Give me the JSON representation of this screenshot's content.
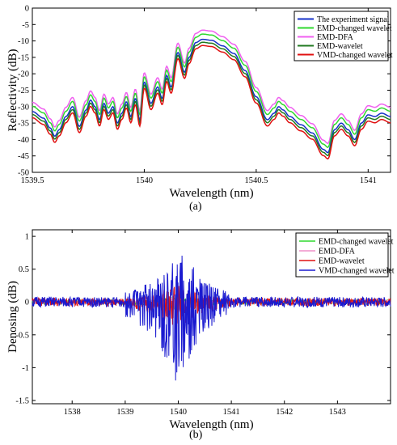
{
  "chart_data": [
    {
      "type": "line",
      "panel_caption": "(a)",
      "xlabel": "Wavelength (nm)",
      "ylabel": "Reflectivity (dB)",
      "xlim": [
        1539.5,
        1541.1
      ],
      "ylim": [
        -50,
        0
      ],
      "xticks": [
        1539.5,
        1540,
        1540.5,
        1541
      ],
      "xtick_labels": [
        "1539.5",
        "1540",
        "1540.5",
        "1541"
      ],
      "yticks": [
        0,
        -5,
        -10,
        -15,
        -20,
        -25,
        -30,
        -35,
        -40,
        -45,
        -50
      ],
      "ytick_labels": [
        "0",
        "-5",
        "-10",
        "-15",
        "-20",
        "-25",
        "-30",
        "-35",
        "-40",
        "-45",
        "-50"
      ],
      "legend_position": "top-right",
      "grid": false,
      "base_curve": {
        "x": [
          1539.5,
          1539.55,
          1539.58,
          1539.6,
          1539.62,
          1539.65,
          1539.68,
          1539.71,
          1539.74,
          1539.76,
          1539.78,
          1539.8,
          1539.82,
          1539.84,
          1539.86,
          1539.88,
          1539.9,
          1539.92,
          1539.94,
          1539.96,
          1539.98,
          1540.0,
          1540.03,
          1540.06,
          1540.08,
          1540.1,
          1540.12,
          1540.15,
          1540.18,
          1540.2,
          1540.23,
          1540.26,
          1540.3,
          1540.35,
          1540.4,
          1540.45,
          1540.5,
          1540.55,
          1540.58,
          1540.6,
          1540.62,
          1540.65,
          1540.7,
          1540.75,
          1540.8,
          1540.82,
          1540.85,
          1540.88,
          1540.91,
          1540.94,
          1540.97,
          1541.0,
          1541.03,
          1541.06,
          1541.1
        ],
        "y": [
          -31.5,
          -33.5,
          -36.5,
          -39,
          -37,
          -33,
          -30,
          -36,
          -31,
          -28,
          -30,
          -34,
          -29,
          -32,
          -30,
          -35,
          -32,
          -28.5,
          -33,
          -27.5,
          -34,
          -22.5,
          -29,
          -24,
          -27.5,
          -20.5,
          -24,
          -13.5,
          -19.5,
          -15,
          -10.5,
          -9.5,
          -9.8,
          -11.5,
          -13.8,
          -19,
          -27,
          -34,
          -32,
          -30,
          -31,
          -33,
          -35.5,
          -38,
          -43,
          -44,
          -37,
          -35,
          -37,
          -40,
          -35,
          -32.5,
          -33,
          -32,
          -33
        ]
      },
      "series": [
        {
          "name": "The experiment signal",
          "color": "#1530c8",
          "offset": 0
        },
        {
          "name": "EMD-changed wavelet",
          "color": "#2fd82f",
          "offset": 1.6
        },
        {
          "name": "EMD-DFA",
          "color": "#f060f0",
          "offset": 2.8
        },
        {
          "name": "EMD-wavelet",
          "color": "#207a20",
          "offset": -0.9
        },
        {
          "name": "VMD-changed wavelet",
          "color": "#e01010",
          "offset": -1.9
        }
      ]
    },
    {
      "type": "line",
      "panel_caption": "(b)",
      "xlabel": "Wavelength (nm)",
      "ylabel": "Denosing (dB)",
      "xlim": [
        1537.25,
        1544.0
      ],
      "ylim": [
        -1.55,
        1.1
      ],
      "xticks": [
        1538,
        1539,
        1540,
        1541,
        1542,
        1543
      ],
      "xtick_labels": [
        "1538",
        "1539",
        "1540",
        "1541",
        "1542",
        "1543"
      ],
      "yticks": [
        1,
        0.5,
        0,
        -0.5,
        -1,
        -1.5
      ],
      "ytick_labels": [
        "1",
        "0.5",
        "0",
        "-0.5",
        "-1",
        "-1.5"
      ],
      "legend_position": "top-right",
      "grid": false,
      "series": [
        {
          "name": "EMD-changed wavelet",
          "color": "#2fd82f",
          "amplitude": 0.035,
          "seed": 11
        },
        {
          "name": "EMD-DFA",
          "color": "#f090c8",
          "amplitude": 0.03,
          "seed": 23
        },
        {
          "name": "EMD-wavelet",
          "color": "#e01010",
          "amplitude": 0.06,
          "seed": 37
        },
        {
          "name": "VMD-changed wavelet",
          "color": "#1a1ad0",
          "amplitude": 0.08,
          "seed": 51
        }
      ],
      "spike_envelope": {
        "x": [
          1539.0,
          1539.5,
          1539.8,
          1540.0,
          1540.2,
          1540.5,
          1541.0
        ],
        "peak_max": [
          0.15,
          0.3,
          0.6,
          0.82,
          0.6,
          0.3,
          0.15
        ],
        "peak_min": [
          -0.25,
          -0.5,
          -0.9,
          -1.27,
          -0.9,
          -0.45,
          -0.2
        ]
      }
    }
  ]
}
